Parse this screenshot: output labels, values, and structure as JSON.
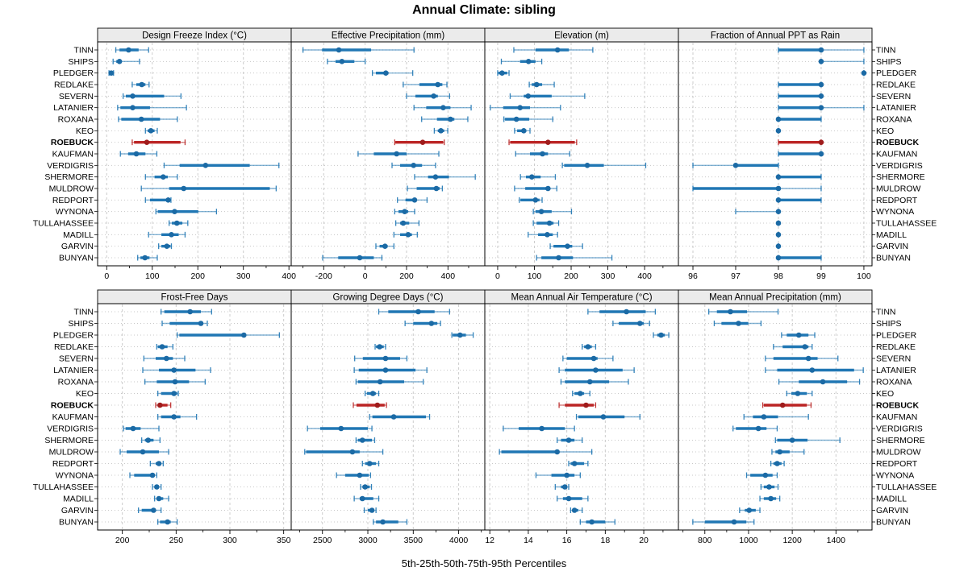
{
  "title": "Annual Climate: sibling",
  "footer": "5th-25th-50th-75th-95th Percentiles",
  "colors": {
    "blue": "#2077b4",
    "blue_point": "#1b6aa5",
    "red": "#bb2525",
    "red_point": "#9f1c1c",
    "strip_bg": "#ebebeb",
    "grid": "#cccccc",
    "row_grid": "#c8c8c8",
    "border": "#000000"
  },
  "stations": [
    "TINN",
    "SHIPS",
    "PLEDGER",
    "REDLAKE",
    "SEVERN",
    "LATANIER",
    "ROXANA",
    "KEO",
    "ROEBUCK",
    "KAUFMAN",
    "VERDIGRIS",
    "SHERMORE",
    "MULDROW",
    "REDPORT",
    "WYNONA",
    "TULLAHASSEE",
    "MADILL",
    "GARVIN",
    "BUNYAN"
  ],
  "highlight_station": "ROEBUCK",
  "chart_data": {
    "type": "trellis-percentile-dotplot",
    "percentiles": [
      5,
      25,
      50,
      75,
      95
    ],
    "legend_note": "whisker = 5th-95th, thick bar = 25th-75th, dot = median",
    "panels": [
      {
        "title": "Design Freeze Index (°C)",
        "xlim": [
          -20,
          405
        ],
        "ticks": [
          0,
          100,
          200,
          300,
          400
        ],
        "minor_step": 50,
        "values": [
          [
            20,
            28,
            48,
            70,
            92
          ],
          [
            14,
            21,
            28,
            33,
            72
          ],
          [
            5,
            8,
            10,
            12,
            15
          ],
          [
            56,
            65,
            77,
            85,
            93
          ],
          [
            36,
            42,
            57,
            126,
            163
          ],
          [
            24,
            30,
            57,
            95,
            175
          ],
          [
            26,
            32,
            76,
            117,
            155
          ],
          [
            85,
            90,
            97,
            105,
            111
          ],
          [
            56,
            60,
            88,
            162,
            172
          ],
          [
            30,
            47,
            65,
            85,
            110
          ],
          [
            126,
            160,
            217,
            314,
            378
          ],
          [
            85,
            105,
            124,
            134,
            155
          ],
          [
            76,
            137,
            169,
            358,
            372
          ],
          [
            85,
            95,
            135,
            138,
            141
          ],
          [
            108,
            112,
            149,
            201,
            241
          ],
          [
            137,
            143,
            154,
            166,
            178
          ],
          [
            92,
            120,
            142,
            158,
            172
          ],
          [
            114,
            120,
            132,
            140,
            142
          ],
          [
            68,
            74,
            84,
            94,
            111
          ]
        ]
      },
      {
        "title": "Effective Precipitation (mm)",
        "xlim": [
          -357,
          578
        ],
        "ticks": [
          -200,
          0,
          200,
          400
        ],
        "minor_step": 100,
        "values": [
          [
            -300,
            -208,
            -127,
            29,
            236
          ],
          [
            -182,
            -143,
            -112,
            -52,
            0
          ],
          [
            35,
            52,
            100,
            113,
            230
          ],
          [
            184,
            262,
            351,
            373,
            395
          ],
          [
            200,
            243,
            331,
            351,
            408
          ],
          [
            236,
            295,
            377,
            412,
            512
          ],
          [
            273,
            347,
            412,
            431,
            496
          ],
          [
            334,
            351,
            366,
            382,
            399
          ],
          [
            143,
            146,
            278,
            377,
            382
          ],
          [
            -34,
            42,
            152,
            200,
            356
          ],
          [
            130,
            169,
            234,
            275,
            340
          ],
          [
            239,
            304,
            340,
            405,
            532
          ],
          [
            204,
            249,
            344,
            360,
            373
          ],
          [
            156,
            195,
            239,
            243,
            299
          ],
          [
            143,
            161,
            191,
            208,
            239
          ],
          [
            148,
            169,
            184,
            213,
            260
          ],
          [
            139,
            169,
            208,
            226,
            252
          ],
          [
            52,
            70,
            96,
            109,
            139
          ],
          [
            -205,
            -130,
            -26,
            42,
            81
          ]
        ]
      },
      {
        "title": "Elevation (m)",
        "xlim": [
          -35,
          492
        ],
        "ticks": [
          0,
          100,
          200,
          300,
          400
        ],
        "minor_step": 50,
        "values": [
          [
            44,
            103,
            163,
            194,
            259
          ],
          [
            10,
            61,
            84,
            103,
            120
          ],
          [
            0,
            2,
            12,
            26,
            31
          ],
          [
            86,
            93,
            106,
            121,
            154
          ],
          [
            34,
            71,
            83,
            147,
            237
          ],
          [
            -20,
            15,
            61,
            88,
            171
          ],
          [
            17,
            20,
            51,
            86,
            150
          ],
          [
            46,
            53,
            71,
            78,
            88
          ],
          [
            31,
            34,
            137,
            210,
            215
          ],
          [
            49,
            88,
            122,
            137,
            196
          ],
          [
            176,
            181,
            244,
            289,
            403
          ],
          [
            62,
            77,
            93,
            117,
            157
          ],
          [
            46,
            75,
            137,
            141,
            161
          ],
          [
            59,
            62,
            103,
            114,
            121
          ],
          [
            97,
            103,
            119,
            147,
            201
          ],
          [
            97,
            106,
            141,
            152,
            166
          ],
          [
            83,
            110,
            135,
            150,
            163
          ],
          [
            143,
            152,
            190,
            203,
            231
          ],
          [
            106,
            119,
            166,
            205,
            311
          ]
        ]
      },
      {
        "title": "Fraction of Annual PPT as Rain",
        "xlim": [
          95.66,
          100.19
        ],
        "ticks": [
          96,
          97,
          98,
          99,
          100
        ],
        "minor_step": 0,
        "values": [
          [
            98,
            98,
            99,
            99,
            100
          ],
          [
            99,
            99,
            99,
            99,
            100
          ],
          [
            100,
            100,
            100,
            100,
            100
          ],
          [
            98,
            98,
            99,
            99,
            99
          ],
          [
            98,
            98,
            99,
            99,
            99
          ],
          [
            98,
            98,
            99,
            99,
            100
          ],
          [
            98,
            98,
            98,
            99,
            99
          ],
          [
            98,
            98,
            98,
            98,
            98
          ],
          [
            98,
            98,
            99,
            99,
            99
          ],
          [
            98,
            98,
            99,
            99,
            99
          ],
          [
            96,
            97,
            97,
            98,
            98
          ],
          [
            98,
            98,
            98,
            99,
            99
          ],
          [
            96,
            96,
            98,
            98,
            99
          ],
          [
            98,
            98,
            98,
            99,
            99
          ],
          [
            97,
            98,
            98,
            98,
            98
          ],
          [
            98,
            98,
            98,
            98,
            98
          ],
          [
            98,
            98,
            98,
            98,
            98
          ],
          [
            98,
            98,
            98,
            98,
            98
          ],
          [
            98,
            98,
            98,
            99,
            99
          ]
        ]
      },
      {
        "title": "Frost-Free Days",
        "xlim": [
          177,
          357
        ],
        "ticks": [
          200,
          250,
          300,
          350
        ],
        "minor_step": 25,
        "values": [
          [
            236,
            239,
            263,
            273,
            283
          ],
          [
            237,
            244,
            273,
            275,
            279
          ],
          [
            251,
            253,
            313,
            315,
            346
          ],
          [
            232,
            233,
            237,
            242,
            247
          ],
          [
            220,
            231,
            241,
            247,
            258
          ],
          [
            219,
            234,
            248,
            268,
            282
          ],
          [
            221,
            232,
            249,
            262,
            277
          ],
          [
            233,
            236,
            248,
            251,
            252
          ],
          [
            231,
            233,
            235,
            242,
            245
          ],
          [
            233,
            236,
            248,
            254,
            269
          ],
          [
            201,
            203,
            210,
            217,
            234
          ],
          [
            218,
            221,
            224,
            229,
            235
          ],
          [
            198,
            204,
            219,
            234,
            243
          ],
          [
            226,
            231,
            234,
            236,
            238
          ],
          [
            207,
            211,
            228,
            230,
            232
          ],
          [
            228,
            230,
            232,
            234,
            236
          ],
          [
            230,
            232,
            234,
            238,
            243
          ],
          [
            215,
            218,
            229,
            230,
            236
          ],
          [
            233,
            235,
            242,
            245,
            251
          ]
        ]
      },
      {
        "title": "Growing Degree Days (°C)",
        "xlim": [
          2156,
          4288
        ],
        "ticks": [
          2500,
          3000,
          3500,
          4000
        ],
        "minor_step": 250,
        "values": [
          [
            3120,
            3225,
            3555,
            3735,
            3900
          ],
          [
            3410,
            3500,
            3700,
            3765,
            3800
          ],
          [
            3925,
            3935,
            4015,
            4080,
            4160
          ],
          [
            3080,
            3090,
            3130,
            3175,
            3195
          ],
          [
            2855,
            2945,
            3195,
            3355,
            3430
          ],
          [
            2850,
            2900,
            3195,
            3525,
            3650
          ],
          [
            2870,
            2890,
            3135,
            3400,
            3610
          ],
          [
            2970,
            2990,
            3055,
            3090,
            3120
          ],
          [
            2840,
            2875,
            3105,
            3185,
            3205
          ],
          [
            3020,
            3050,
            3285,
            3640,
            3680
          ],
          [
            2335,
            2475,
            2705,
            3000,
            3045
          ],
          [
            2870,
            2890,
            2940,
            3045,
            3075
          ],
          [
            2305,
            2320,
            2830,
            2910,
            3165
          ],
          [
            2940,
            2970,
            3020,
            3090,
            3120
          ],
          [
            2655,
            2750,
            2910,
            3010,
            3030
          ],
          [
            2920,
            2940,
            2970,
            3020,
            3040
          ],
          [
            2850,
            2910,
            2940,
            3060,
            3120
          ],
          [
            2960,
            3000,
            3045,
            3070,
            3090
          ],
          [
            3060,
            3090,
            3165,
            3335,
            3430
          ]
        ]
      },
      {
        "title": "Mean Annual Air Temperature (°C)",
        "xlim": [
          11.74,
          21.8
        ],
        "ticks": [
          12,
          14,
          16,
          18,
          20
        ],
        "minor_step": 1,
        "values": [
          [
            17.1,
            17.7,
            19.1,
            20.1,
            20.6
          ],
          [
            18.4,
            18.7,
            19.8,
            20.0,
            20.3
          ],
          [
            20.5,
            20.7,
            20.9,
            21.1,
            21.3
          ],
          [
            16.8,
            16.9,
            17.1,
            17.3,
            17.5
          ],
          [
            15.8,
            16.0,
            17.4,
            17.6,
            18.4
          ],
          [
            15.6,
            15.9,
            17.5,
            18.9,
            19.5
          ],
          [
            15.7,
            15.9,
            17.2,
            18.2,
            19.2
          ],
          [
            16.3,
            16.4,
            16.7,
            16.9,
            17.2
          ],
          [
            15.6,
            15.9,
            17.0,
            17.4,
            17.5
          ],
          [
            16.5,
            16.6,
            17.9,
            19.0,
            19.8
          ],
          [
            12.7,
            13.5,
            14.7,
            15.9,
            16.4
          ],
          [
            15.5,
            15.7,
            16.1,
            16.4,
            16.8
          ],
          [
            12.5,
            12.6,
            15.5,
            15.6,
            17.3
          ],
          [
            16.1,
            16.2,
            16.4,
            16.9,
            17.1
          ],
          [
            14.4,
            15.2,
            16.0,
            16.4,
            16.7
          ],
          [
            15.4,
            15.7,
            15.9,
            16.0,
            16.1
          ],
          [
            15.5,
            15.8,
            16.1,
            16.8,
            17.1
          ],
          [
            16.2,
            16.3,
            16.4,
            16.6,
            16.8
          ],
          [
            16.7,
            17.0,
            17.3,
            18.0,
            18.5
          ]
        ]
      },
      {
        "title": "Mean Annual Precipitation (mm)",
        "xlim": [
          679,
          1565
        ],
        "ticks": [
          800,
          1000,
          1200,
          1400
        ],
        "minor_step": 100,
        "values": [
          [
            818,
            855,
            917,
            993,
            1135
          ],
          [
            843,
            876,
            954,
            999,
            1057
          ],
          [
            1151,
            1175,
            1230,
            1274,
            1303
          ],
          [
            1114,
            1156,
            1258,
            1274,
            1291
          ],
          [
            1077,
            1114,
            1274,
            1316,
            1409
          ],
          [
            1077,
            1131,
            1291,
            1483,
            1525
          ],
          [
            1139,
            1230,
            1340,
            1451,
            1508
          ],
          [
            1175,
            1196,
            1225,
            1267,
            1291
          ],
          [
            1065,
            1070,
            1156,
            1267,
            1286
          ],
          [
            979,
            1020,
            1070,
            1135,
            1274
          ],
          [
            929,
            942,
            1045,
            1082,
            1131
          ],
          [
            1123,
            1131,
            1200,
            1270,
            1418
          ],
          [
            1107,
            1123,
            1143,
            1188,
            1254
          ],
          [
            1102,
            1114,
            1131,
            1151,
            1163
          ],
          [
            991,
            1008,
            1077,
            1110,
            1131
          ],
          [
            1057,
            1070,
            1094,
            1119,
            1135
          ],
          [
            1052,
            1070,
            1102,
            1126,
            1143
          ],
          [
            959,
            983,
            1003,
            1033,
            1052
          ],
          [
            745,
            800,
            934,
            990,
            1025
          ]
        ]
      }
    ]
  }
}
